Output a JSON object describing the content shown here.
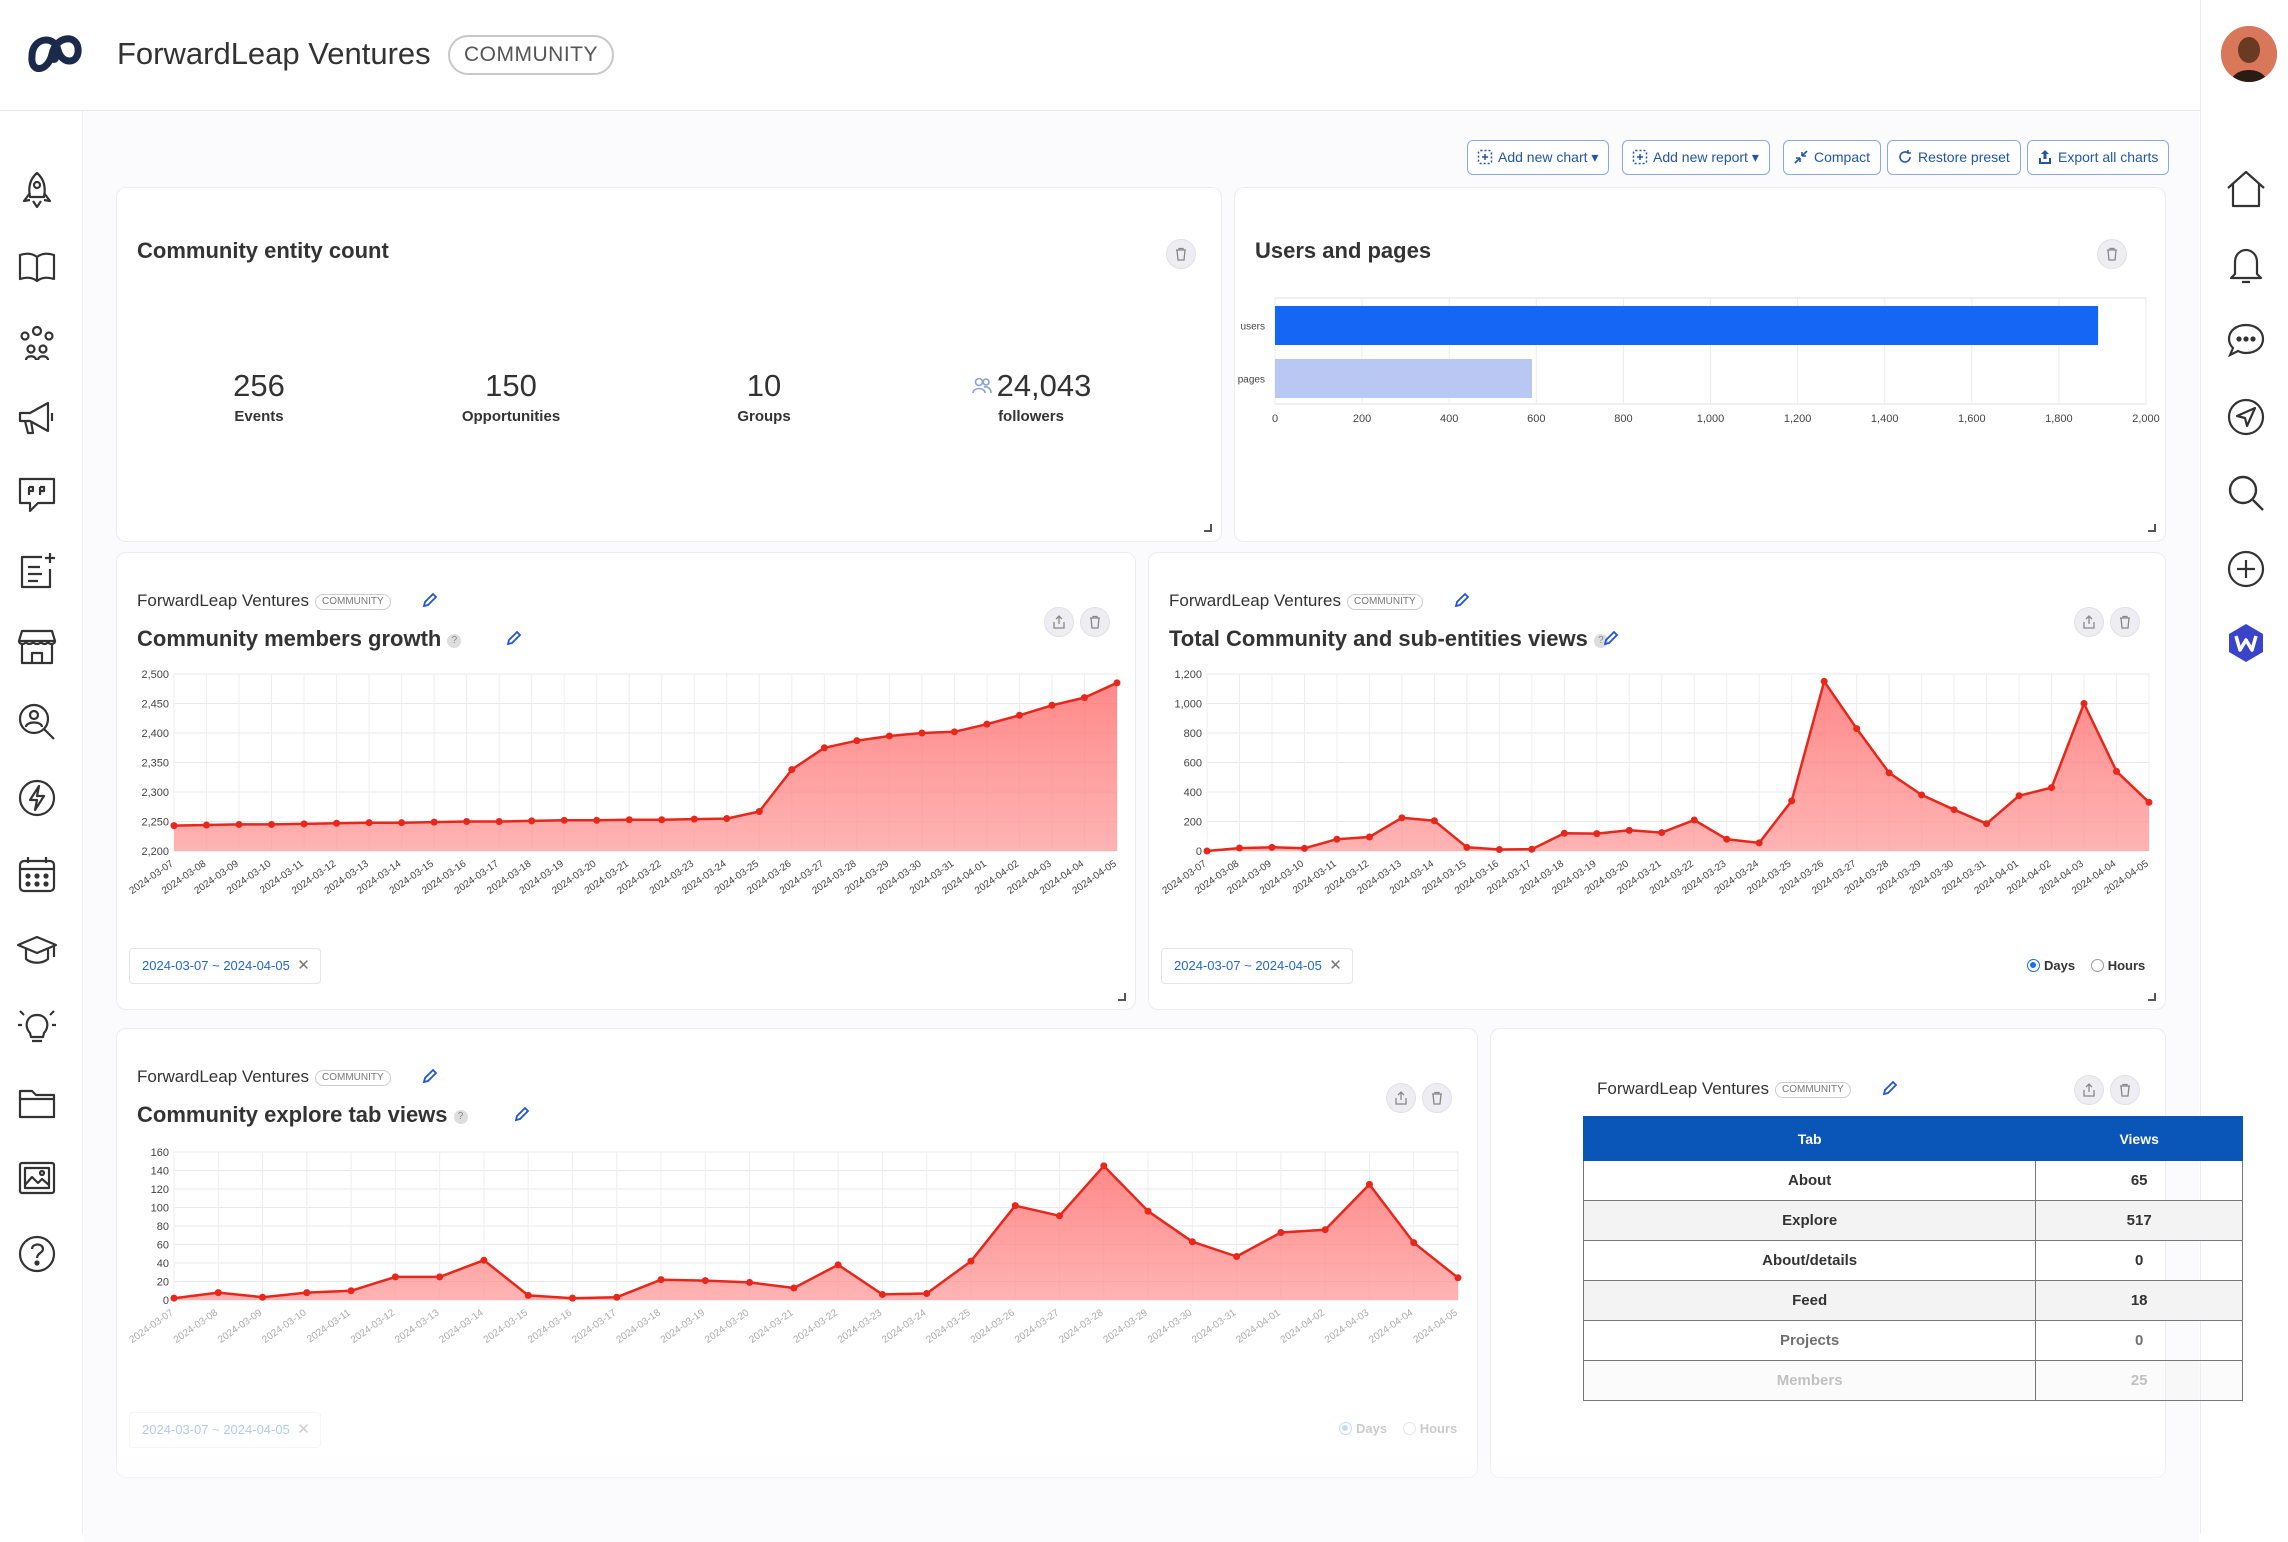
{
  "header": {
    "org_name": "ForwardLeap Ventures",
    "org_badge": "COMMUNITY"
  },
  "toolbar": {
    "add_chart": "Add new chart",
    "add_report": "Add new report",
    "compact": "Compact",
    "restore": "Restore preset",
    "export": "Export all charts"
  },
  "left_nav": [
    "rocket-icon",
    "book-icon",
    "people-icon",
    "megaphone-icon",
    "quote-icon",
    "add-note-icon",
    "store-icon",
    "search-person-icon",
    "bolt-icon",
    "calendar-icon",
    "graduation-cap-icon",
    "lightbulb-icon",
    "folder-icon",
    "images-icon",
    "help-icon"
  ],
  "right_nav": [
    "home-icon",
    "bell-icon",
    "chat-icon",
    "send-icon",
    "search-icon",
    "plus-circle-icon",
    "w-app-icon"
  ],
  "entity_count": {
    "title": "Community entity count",
    "stats": [
      {
        "value": "256",
        "label": "Events"
      },
      {
        "value": "150",
        "label": "Opportunities"
      },
      {
        "value": "10",
        "label": "Groups"
      },
      {
        "value": "24,043",
        "label": "followers"
      }
    ]
  },
  "users_pages": {
    "title": "Users and pages",
    "chart_data": {
      "type": "bar",
      "orientation": "horizontal",
      "categories": [
        "users",
        "pages"
      ],
      "values": [
        1890,
        590
      ],
      "colors": [
        "#1467f5",
        "#b9c8f2"
      ],
      "xlim": [
        0,
        2000
      ],
      "xticks": [
        "0",
        "200",
        "400",
        "600",
        "800",
        "1,000",
        "1,200",
        "1,400",
        "1,600",
        "1,800",
        "2,000"
      ]
    }
  },
  "members_growth": {
    "org": "ForwardLeap Ventures",
    "badge": "COMMUNITY",
    "title": "Community members growth",
    "date_range": "2024-03-07 ~ 2024-04-05",
    "chart_data": {
      "type": "area",
      "x": [
        "2024-03-07",
        "2024-03-08",
        "2024-03-09",
        "2024-03-10",
        "2024-03-11",
        "2024-03-12",
        "2024-03-13",
        "2024-03-14",
        "2024-03-15",
        "2024-03-16",
        "2024-03-17",
        "2024-03-18",
        "2024-03-19",
        "2024-03-20",
        "2024-03-21",
        "2024-03-22",
        "2024-03-23",
        "2024-03-24",
        "2024-03-25",
        "2024-03-26",
        "2024-03-27",
        "2024-03-28",
        "2024-03-29",
        "2024-03-30",
        "2024-03-31",
        "2024-04-01",
        "2024-04-02",
        "2024-04-03",
        "2024-04-04",
        "2024-04-05"
      ],
      "values": [
        2243,
        2244,
        2245,
        2245,
        2246,
        2247,
        2248,
        2248,
        2249,
        2250,
        2250,
        2251,
        2252,
        2252,
        2253,
        2253,
        2254,
        2255,
        2267,
        2338,
        2375,
        2387,
        2395,
        2400,
        2402,
        2415,
        2430,
        2447,
        2460,
        2485
      ],
      "ylim": [
        2200,
        2500
      ],
      "yticks": [
        "2,200",
        "2,250",
        "2,300",
        "2,350",
        "2,400",
        "2,450",
        "2,500"
      ]
    }
  },
  "total_views": {
    "org": "ForwardLeap Ventures",
    "badge": "COMMUNITY",
    "title": "Total Community and sub-entities views",
    "date_range": "2024-03-07 ~ 2024-04-05",
    "radio_days": "Days",
    "radio_hours": "Hours",
    "chart_data": {
      "type": "area",
      "x": [
        "2024-03-07",
        "2024-03-08",
        "2024-03-09",
        "2024-03-10",
        "2024-03-11",
        "2024-03-12",
        "2024-03-13",
        "2024-03-14",
        "2024-03-15",
        "2024-03-16",
        "2024-03-17",
        "2024-03-18",
        "2024-03-19",
        "2024-03-20",
        "2024-03-21",
        "2024-03-22",
        "2024-03-23",
        "2024-03-24",
        "2024-03-25",
        "2024-03-26",
        "2024-03-27",
        "2024-03-28",
        "2024-03-29",
        "2024-03-30",
        "2024-03-31",
        "2024-04-01",
        "2024-04-02",
        "2024-04-03",
        "2024-04-04",
        "2024-04-05"
      ],
      "values": [
        0,
        20,
        25,
        18,
        80,
        95,
        225,
        205,
        25,
        10,
        12,
        120,
        118,
        140,
        125,
        210,
        80,
        55,
        340,
        1150,
        830,
        530,
        380,
        280,
        185,
        375,
        430,
        1000,
        540,
        330
      ],
      "ylim": [
        0,
        1200
      ],
      "yticks": [
        "0",
        "200",
        "400",
        "600",
        "800",
        "1,000",
        "1,200"
      ]
    }
  },
  "explore_views": {
    "org": "ForwardLeap Ventures",
    "badge": "COMMUNITY",
    "title": "Community explore tab views",
    "date_range": "2024-03-07 ~ 2024-04-05",
    "radio_days": "Days",
    "radio_hours": "Hours",
    "chart_data": {
      "type": "area",
      "x": [
        "2024-03-07",
        "2024-03-08",
        "2024-03-09",
        "2024-03-10",
        "2024-03-11",
        "2024-03-12",
        "2024-03-13",
        "2024-03-14",
        "2024-03-15",
        "2024-03-16",
        "2024-03-17",
        "2024-03-18",
        "2024-03-19",
        "2024-03-20",
        "2024-03-21",
        "2024-03-22",
        "2024-03-23",
        "2024-03-24",
        "2024-03-25",
        "2024-03-26",
        "2024-03-27",
        "2024-03-28",
        "2024-03-29",
        "2024-03-30",
        "2024-03-31",
        "2024-04-01",
        "2024-04-02",
        "2024-04-03",
        "2024-04-04",
        "2024-04-05"
      ],
      "values": [
        2,
        8,
        3,
        8,
        10,
        25,
        25,
        43,
        5,
        2,
        3,
        22,
        21,
        19,
        13,
        38,
        6,
        7,
        42,
        102,
        91,
        145,
        96,
        63,
        47,
        73,
        76,
        125,
        62,
        24
      ],
      "ylim": [
        0,
        160
      ],
      "yticks": [
        "0",
        "20",
        "40",
        "60",
        "80",
        "100",
        "120",
        "140",
        "160"
      ]
    }
  },
  "tab_table": {
    "org": "ForwardLeap Ventures",
    "badge": "COMMUNITY",
    "headers": [
      "Tab",
      "Views"
    ],
    "rows": [
      [
        "About",
        "65"
      ],
      [
        "Explore",
        "517"
      ],
      [
        "About/details",
        "0"
      ],
      [
        "Feed",
        "18"
      ],
      [
        "Projects",
        "0"
      ],
      [
        "Members",
        "25"
      ]
    ]
  },
  "colors": {
    "accent": "#1a6dff",
    "line_red": "#e8261a",
    "area_red": "#ff8f8f",
    "table_header": "#0a55b8"
  }
}
